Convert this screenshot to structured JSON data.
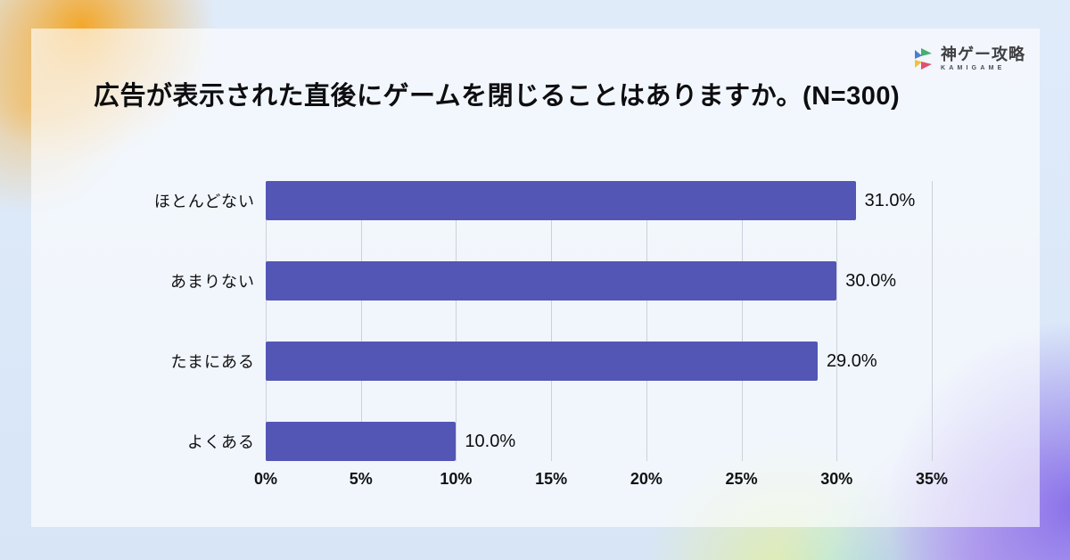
{
  "brand": {
    "name": "神ゲー攻略",
    "subname": "KAMIGAME",
    "icon": "kamigame-pinwheel-icon",
    "icon_colors": {
      "green": "#46b06a",
      "blue": "#4a7fd1",
      "yellow": "#f0c13e",
      "pink": "#e0506f"
    }
  },
  "chart_data": {
    "type": "bar",
    "orientation": "horizontal",
    "title": "広告が表示された直後にゲームを閉じることはありますか。(N=300)",
    "categories": [
      "ほとんどない",
      "あまりない",
      "たまにある",
      "よくある"
    ],
    "values": [
      31.0,
      30.0,
      29.0,
      10.0
    ],
    "value_labels": [
      "31.0%",
      "30.0%",
      "29.0%",
      "10.0%"
    ],
    "x_ticks": [
      0,
      5,
      10,
      15,
      20,
      25,
      30,
      35
    ],
    "x_tick_labels": [
      "0%",
      "5%",
      "10%",
      "15%",
      "20%",
      "25%",
      "30%",
      "35%"
    ],
    "xlim": [
      0,
      35
    ],
    "bar_color": "#5356b5",
    "grid": true,
    "legend": false
  }
}
